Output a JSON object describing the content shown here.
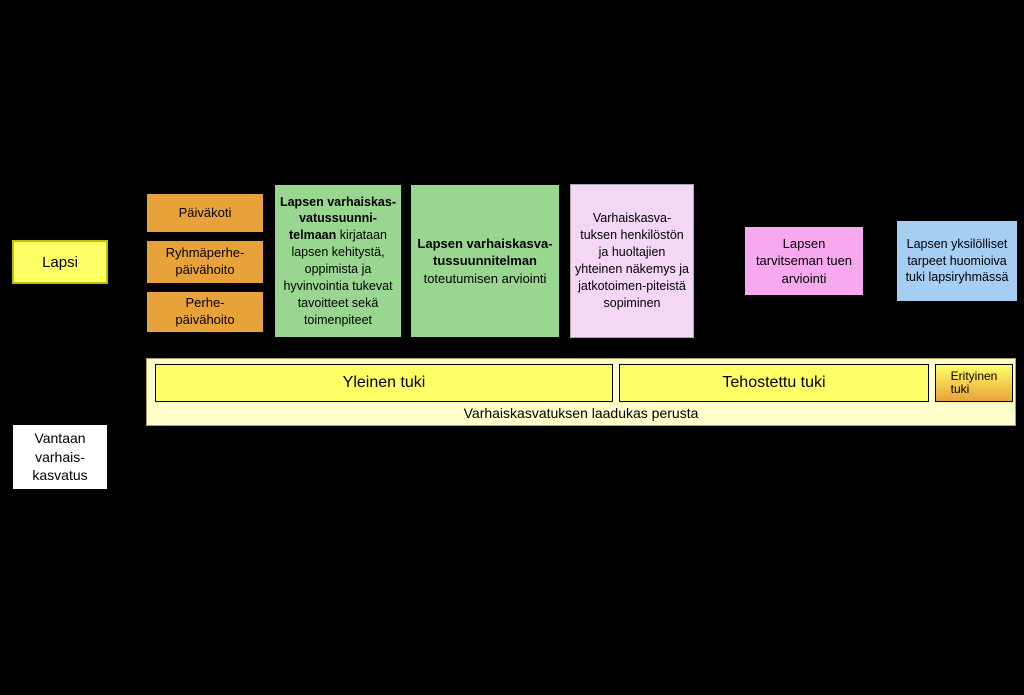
{
  "diagram": {
    "background_color": "#000000",
    "lapsi": {
      "label": "Lapsi",
      "bg": "#ffff66"
    },
    "orange_boxes": {
      "bg": "#e8a23a",
      "o1": "Päiväkoti",
      "o2": "Ryhmäperhe-\npäivähoito",
      "o3": "Perhe-\npäivähoito"
    },
    "green_boxes": {
      "bg": "#99d68f",
      "g1_bold": "Lapsen varhaiskas-vatussuunni-telmaan",
      "g1_rest": "kirjataan lapsen kehitystä, oppimista ja hyvinvointia tukevat tavoitteet sekä toimenpiteet",
      "g2_bold": "Lapsen varhaiskasva-tussuunnitelman",
      "g2_rest": "toteutumisen arviointi"
    },
    "pink1": {
      "bg": "#f4d7f4",
      "text": "Varhaiskasva-tuksen henkilöstön ja huoltajien yhteinen näkemys ja jatkotoimen-piteistä sopiminen"
    },
    "pink2": {
      "bg": "#f7a8ef",
      "text": "Lapsen tarvitseman tuen arviointi"
    },
    "blue": {
      "bg": "#a6cdf2",
      "text": "Lapsen yksilölliset tarpeet huomioiva tuki lapsiryhmässä"
    },
    "vantaa": {
      "bg": "#ffffff",
      "text": "Vantaan varhais-kasvatus"
    },
    "tuki_bar": {
      "container_bg": "#ffffcc",
      "yleinen": {
        "label": "Yleinen tuki",
        "bg": "#ffff66"
      },
      "tehostettu": {
        "label": "Tehostettu tuki",
        "bg": "#ffff66"
      },
      "erityinen": {
        "label": "Erityinen\ntuki",
        "bg_gradient": [
          "#ffff66",
          "#e8a23a"
        ]
      },
      "perusta": "Varhaiskasvatuksen laadukas perusta"
    },
    "fonts": {
      "family": "Arial",
      "title_pt": 16,
      "body_pt": 13,
      "small_pt": 12
    },
    "arrow_color": "#000000"
  }
}
